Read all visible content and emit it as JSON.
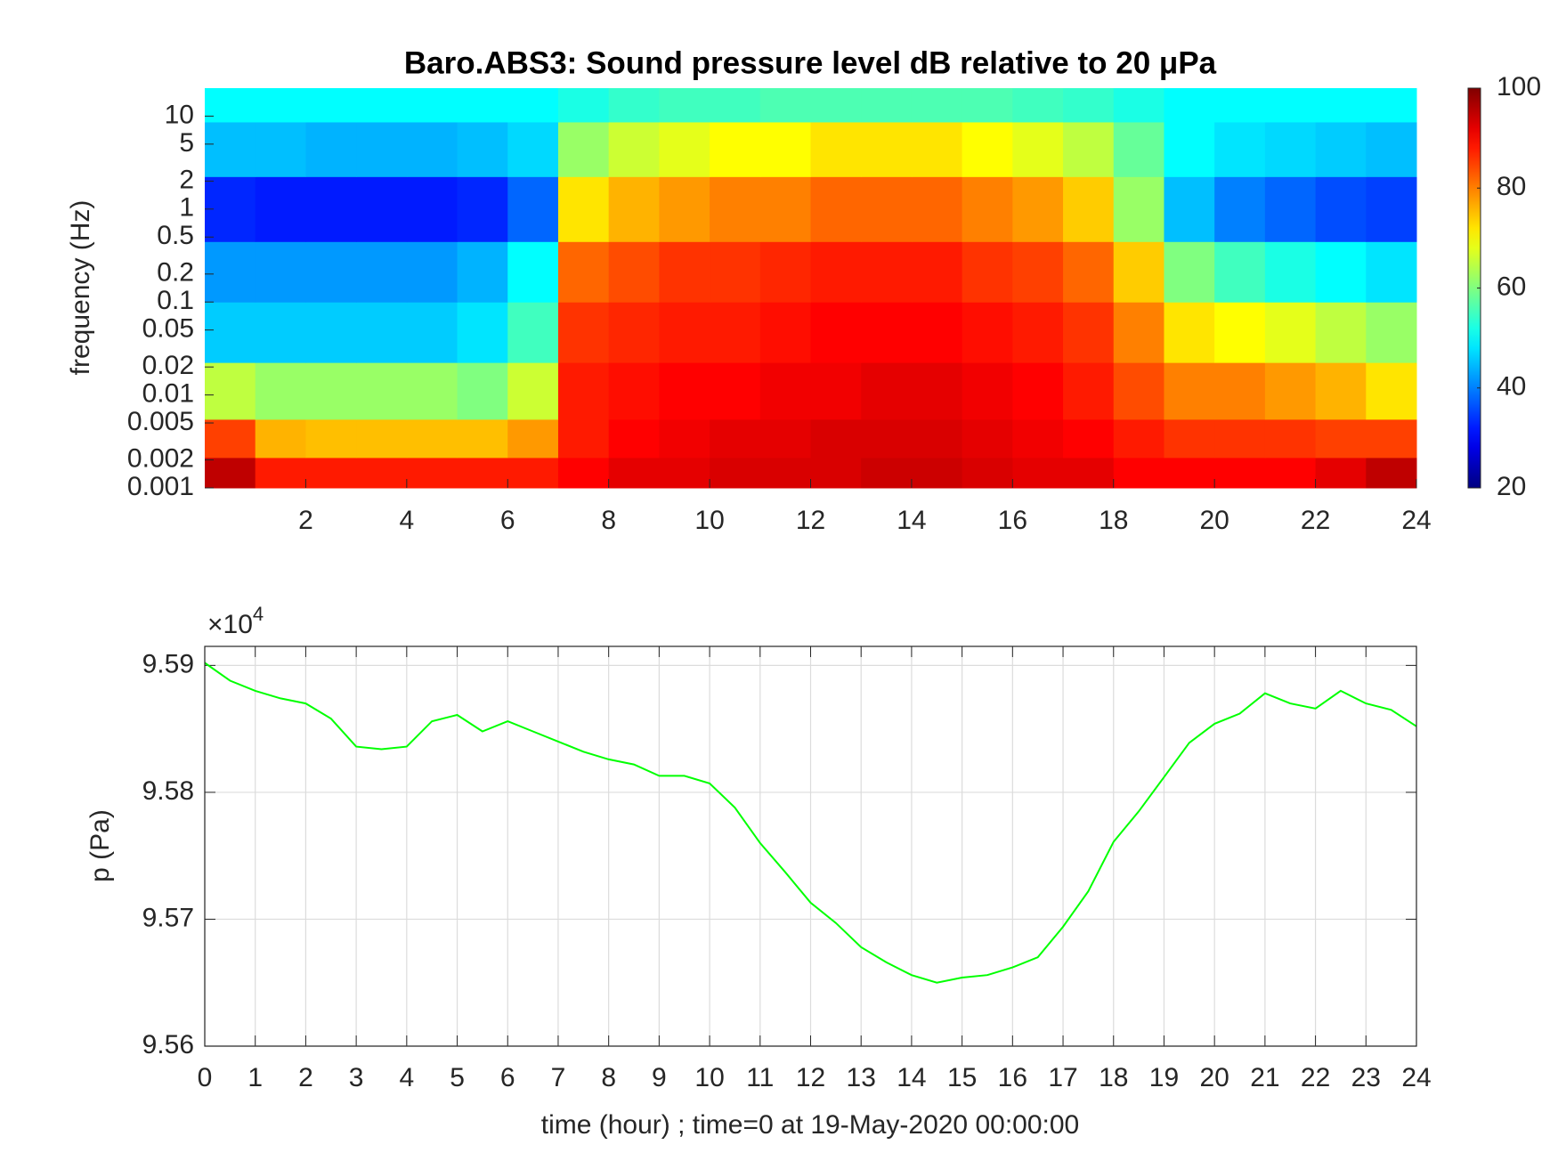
{
  "chart_data": [
    {
      "type": "heatmap",
      "title": "Baro.ABS3: Sound pressure level dB relative to 20 μPa",
      "ylabel": "frequency (Hz)",
      "x": [
        0.5,
        1.5,
        2.5,
        3.5,
        4.5,
        5.5,
        6.5,
        7.5,
        8.5,
        9.5,
        10.5,
        11.5,
        12.5,
        13.5,
        14.5,
        15.5,
        16.5,
        17.5,
        18.5,
        19.5,
        20.5,
        21.5,
        22.5,
        23.5
      ],
      "y": [
        0.0015,
        0.003,
        0.01,
        0.05,
        0.2,
        1,
        5,
        15
      ],
      "z": [
        [
          95,
          88,
          88,
          88,
          88,
          88,
          88,
          90,
          92,
          92,
          93,
          93,
          93,
          94,
          94,
          93,
          92,
          92,
          90,
          90,
          90,
          90,
          92,
          95
        ],
        [
          85,
          76,
          75,
          75,
          75,
          75,
          78,
          88,
          90,
          91,
          92,
          92,
          93,
          93,
          93,
          92,
          91,
          90,
          88,
          86,
          86,
          86,
          85,
          85
        ],
        [
          65,
          62,
          62,
          62,
          62,
          60,
          66,
          88,
          89,
          90,
          90,
          91,
          91,
          92,
          92,
          91,
          90,
          88,
          84,
          80,
          80,
          78,
          76,
          72
        ],
        [
          46,
          46,
          46,
          46,
          46,
          48,
          55,
          86,
          87,
          88,
          88,
          89,
          90,
          90,
          90,
          89,
          88,
          86,
          80,
          72,
          70,
          68,
          65,
          62
        ],
        [
          42,
          42,
          42,
          42,
          42,
          44,
          50,
          82,
          84,
          86,
          86,
          87,
          88,
          88,
          88,
          86,
          85,
          82,
          74,
          60,
          55,
          52,
          50,
          48
        ],
        [
          33,
          32,
          32,
          32,
          32,
          33,
          38,
          72,
          76,
          78,
          80,
          80,
          82,
          82,
          82,
          80,
          78,
          74,
          62,
          45,
          40,
          38,
          36,
          35
        ],
        [
          45,
          45,
          44,
          44,
          44,
          45,
          47,
          62,
          66,
          68,
          70,
          70,
          72,
          72,
          72,
          70,
          68,
          65,
          58,
          50,
          48,
          47,
          46,
          45
        ],
        [
          50,
          50,
          50,
          50,
          50,
          50,
          50,
          52,
          54,
          55,
          55,
          56,
          56,
          56,
          56,
          56,
          55,
          54,
          52,
          50,
          50,
          50,
          50,
          50
        ]
      ],
      "colormap": "jet",
      "xlim": [
        0,
        24
      ],
      "xticks": [
        2,
        4,
        6,
        8,
        10,
        12,
        14,
        16,
        18,
        20,
        22,
        24
      ],
      "ylim": [
        0.001,
        20
      ],
      "log_y": true,
      "yticks": [
        0.001,
        0.002,
        0.005,
        0.01,
        0.02,
        0.05,
        0.1,
        0.2,
        0.5,
        1,
        2,
        5,
        10
      ],
      "clim": [
        20,
        100
      ],
      "cticks": [
        20,
        40,
        60,
        80,
        100
      ]
    },
    {
      "type": "line",
      "xlabel": "time (hour) ; time=0 at 19-May-2020 00:00:00",
      "ylabel": "p (Pa)",
      "y_multiplier_base": "×10",
      "y_multiplier_exponent": "4",
      "color": "#00ff00",
      "x": [
        0,
        0.5,
        1,
        1.5,
        2,
        2.5,
        3,
        3.5,
        4,
        4.5,
        5,
        5.5,
        6,
        6.5,
        7,
        7.5,
        8,
        8.5,
        9,
        9.5,
        10,
        10.5,
        11,
        11.5,
        12,
        12.5,
        13,
        13.5,
        14,
        14.5,
        15,
        15.5,
        16,
        16.5,
        17,
        17.5,
        18,
        18.5,
        19,
        19.5,
        20,
        20.5,
        21,
        21.5,
        22,
        22.5,
        23,
        23.5,
        24
      ],
      "values": [
        95902,
        95888,
        95880,
        95874,
        95870,
        95858,
        95836,
        95834,
        95836,
        95856,
        95861,
        95848,
        95856,
        95848,
        95840,
        95832,
        95826,
        95822,
        95813,
        95813,
        95807,
        95788,
        95760,
        95737,
        95713,
        95697,
        95678,
        95666,
        95656,
        95650,
        95654,
        95656,
        95662,
        95670,
        95694,
        95722,
        95761,
        95785,
        95812,
        95839,
        95854,
        95862,
        95878,
        95870,
        95866,
        95880,
        95870,
        95865,
        95852
      ],
      "xlim": [
        0,
        24
      ],
      "xticks": [
        0,
        1,
        2,
        3,
        4,
        5,
        6,
        7,
        8,
        9,
        10,
        11,
        12,
        13,
        14,
        15,
        16,
        17,
        18,
        19,
        20,
        21,
        22,
        23,
        24
      ],
      "ylim": [
        95600,
        95915
      ],
      "yticks": [
        {
          "value": 95600,
          "label": "9.56"
        },
        {
          "value": 95700,
          "label": "9.57"
        },
        {
          "value": 95800,
          "label": "9.58"
        },
        {
          "value": 95900,
          "label": "9.59"
        }
      ],
      "grid": true
    }
  ]
}
